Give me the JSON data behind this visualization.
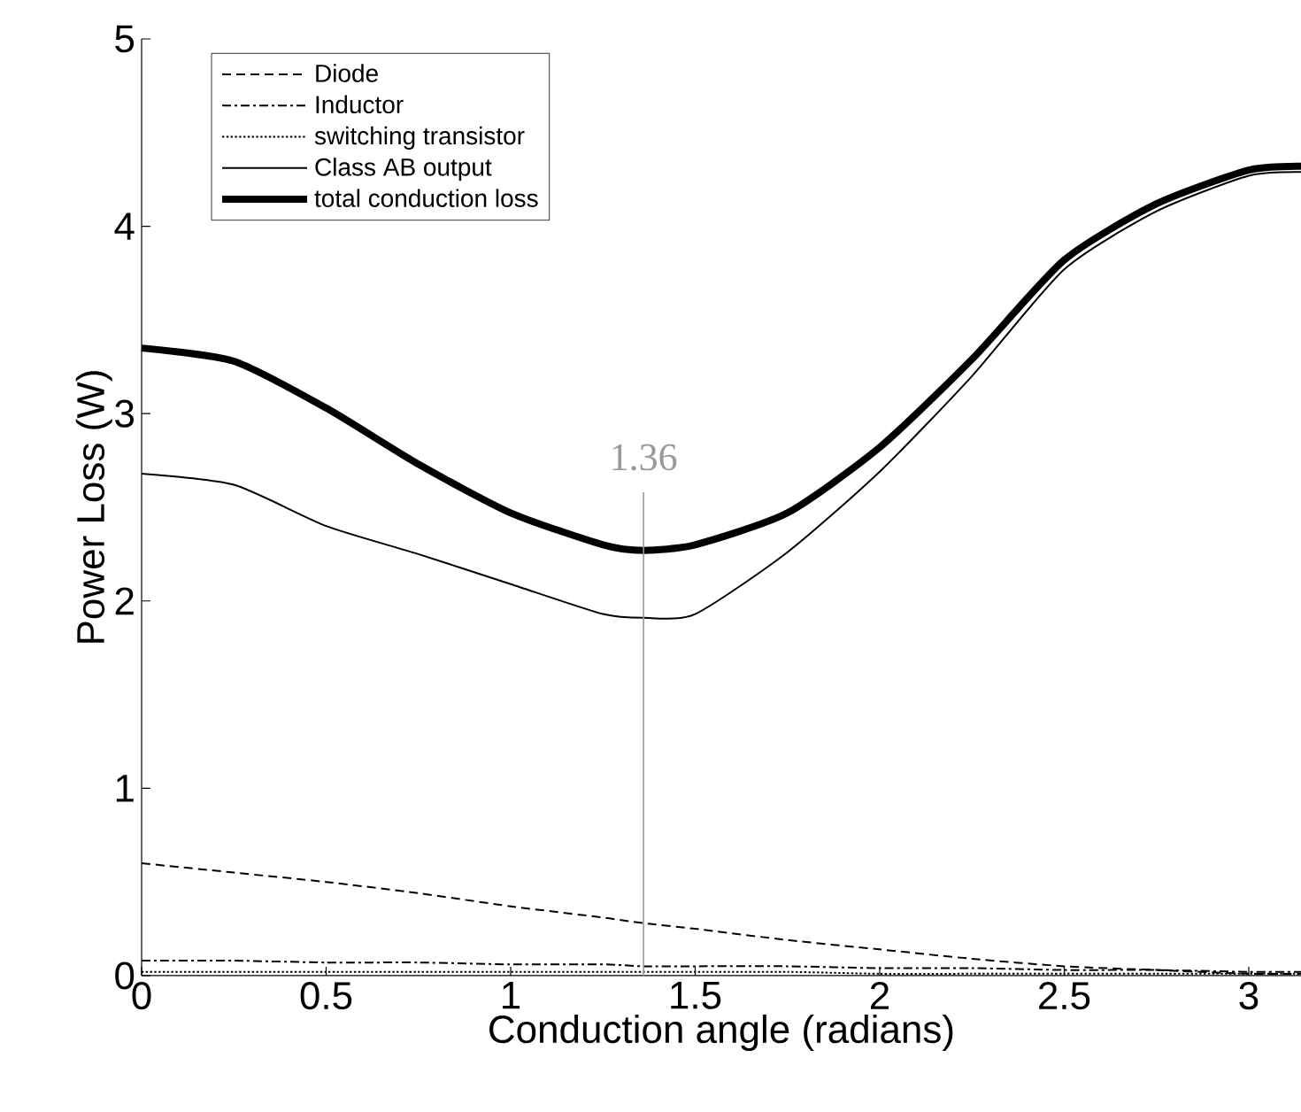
{
  "chart_data": {
    "type": "line",
    "xlabel": "Conduction angle (radians)",
    "ylabel": "Power Loss (W)",
    "xlim": [
      0,
      3.1416
    ],
    "ylim": [
      0,
      5
    ],
    "xticks": [
      0,
      0.5,
      1,
      1.5,
      2,
      2.5,
      3
    ],
    "yticks": [
      0,
      1,
      2,
      3,
      4,
      5
    ],
    "x": [
      0,
      0.25,
      0.5,
      0.75,
      1,
      1.25,
      1.36,
      1.5,
      1.75,
      2,
      2.25,
      2.5,
      2.75,
      3,
      3.1416
    ],
    "series": [
      {
        "name": "Diode",
        "color": "#000000",
        "line_style": "dashed",
        "values": [
          0.6,
          0.55,
          0.5,
          0.44,
          0.37,
          0.31,
          0.28,
          0.25,
          0.19,
          0.14,
          0.09,
          0.05,
          0.03,
          0.01,
          0.01
        ]
      },
      {
        "name": "Inductor",
        "color": "#000000",
        "line_style": "dashdot",
        "values": [
          0.08,
          0.08,
          0.07,
          0.07,
          0.06,
          0.06,
          0.05,
          0.05,
          0.05,
          0.04,
          0.04,
          0.03,
          0.03,
          0.02,
          0.02
        ]
      },
      {
        "name": "switching transistor",
        "color": "#000000",
        "line_style": "dotted",
        "values": [
          0.02,
          0.02,
          0.02,
          0.02,
          0.02,
          0.02,
          0.02,
          0.02,
          0.02,
          0.01,
          0.01,
          0.01,
          0.01,
          0.01,
          0.01
        ]
      },
      {
        "name": "Class AB output",
        "color": "#000000",
        "line_style": "solid",
        "values": [
          2.68,
          2.62,
          2.4,
          2.25,
          2.09,
          1.93,
          1.91,
          1.93,
          2.26,
          2.69,
          3.2,
          3.77,
          4.08,
          4.27,
          4.29
        ]
      },
      {
        "name": "total conduction loss",
        "color": "#000000",
        "line_style": "solid",
        "values": [
          3.35,
          3.28,
          3.03,
          2.73,
          2.47,
          2.3,
          2.27,
          2.3,
          2.47,
          2.82,
          3.29,
          3.82,
          4.12,
          4.3,
          4.32
        ]
      }
    ],
    "ref_lines": [
      {
        "axis": "x",
        "value": 1.36,
        "label": "1.36",
        "color": "#999999"
      }
    ],
    "legend": "top left",
    "grid": false
  }
}
